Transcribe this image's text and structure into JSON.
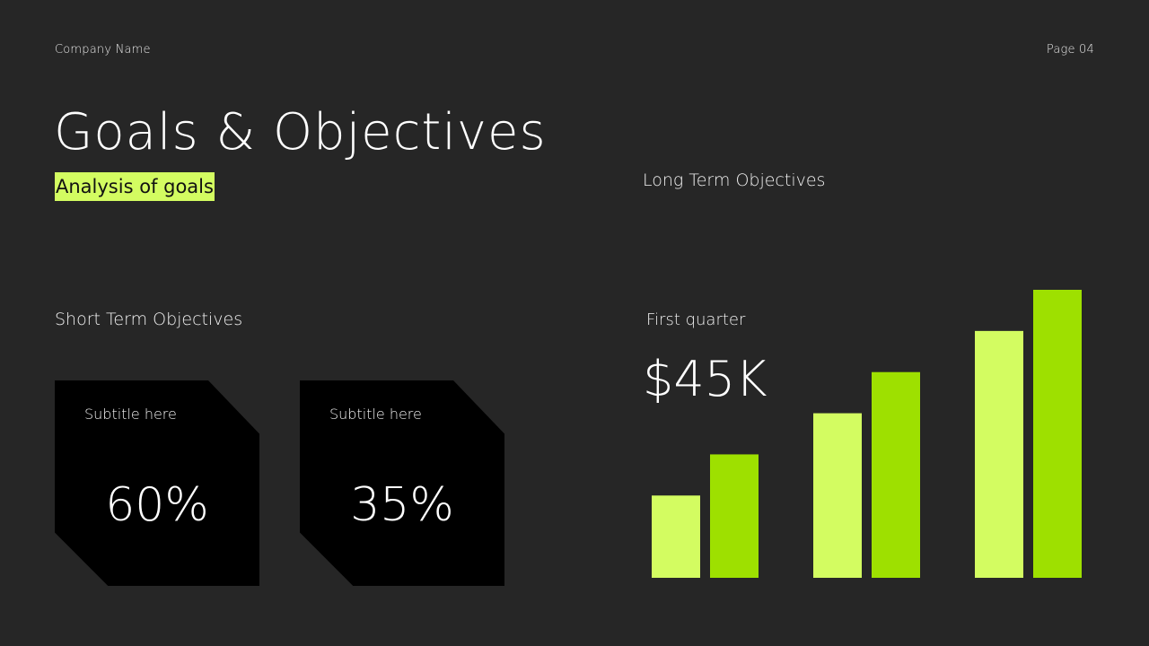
{
  "header": {
    "company_name": "Company Name",
    "page_label": "Page 04"
  },
  "title": "Goals & Objectives",
  "subtitle": "Analysis of goals",
  "long_term": {
    "heading": "Long Term Objectives"
  },
  "short_term": {
    "heading": "Short Term Objectives",
    "cards": [
      {
        "subtitle": "Subtitle here",
        "value": "60%"
      },
      {
        "subtitle": "Subtitle here",
        "value": "35%"
      }
    ]
  },
  "first_quarter": {
    "label": "First quarter",
    "value": "$45K"
  },
  "colors": {
    "background": "#262626",
    "accent_light": "#d3fc61",
    "accent_dark": "#9ee000",
    "card": "#000000"
  },
  "chart_data": {
    "type": "bar",
    "categories": [
      "",
      "",
      ""
    ],
    "series": [
      {
        "values": [
          2.0,
          4.0,
          6.0
        ],
        "color": "#d3fc61"
      },
      {
        "values": [
          3.0,
          5.0,
          7.0
        ],
        "color": "#9ee000"
      }
    ],
    "ylim": [
      0,
      7
    ],
    "grid": false,
    "legend": "none"
  }
}
